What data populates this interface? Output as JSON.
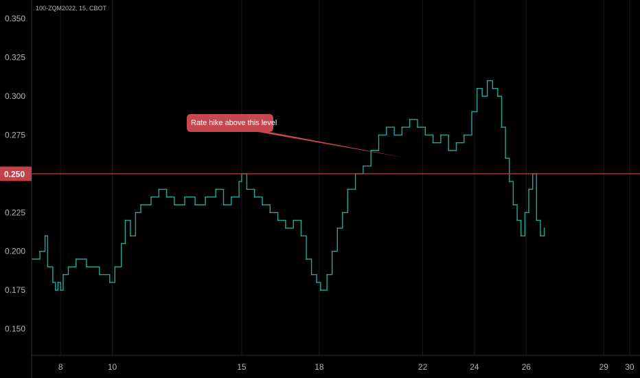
{
  "chart_data": {
    "type": "line",
    "title": "100-ZQM2022, 15, CBOT",
    "xlabel": "",
    "ylabel": "",
    "x_ticks": [
      {
        "label": "8",
        "x": 8
      },
      {
        "label": "10",
        "x": 10
      },
      {
        "label": "15",
        "x": 15
      },
      {
        "label": "18",
        "x": 18
      },
      {
        "label": "22",
        "x": 22
      },
      {
        "label": "24",
        "x": 24
      },
      {
        "label": "26",
        "x": 26
      },
      {
        "label": "29",
        "x": 29
      },
      {
        "label": "30",
        "x": 30
      }
    ],
    "y_ticks": [
      "0.150",
      "0.175",
      "0.200",
      "0.225",
      "0.250",
      "0.275",
      "0.300",
      "0.325",
      "0.350"
    ],
    "ylim": [
      0.133,
      0.362
    ],
    "xlim": [
      6.88,
      30.4
    ],
    "grid": "vertical",
    "series": [
      {
        "color": "#26a69a",
        "values": [
          [
            6.9,
            0.195
          ],
          [
            7.2,
            0.2
          ],
          [
            7.4,
            0.21
          ],
          [
            7.5,
            0.19
          ],
          [
            7.7,
            0.18
          ],
          [
            7.8,
            0.175
          ],
          [
            7.9,
            0.18
          ],
          [
            8.0,
            0.175
          ],
          [
            8.1,
            0.185
          ],
          [
            8.3,
            0.19
          ],
          [
            8.6,
            0.195
          ],
          [
            9.0,
            0.19
          ],
          [
            9.5,
            0.185
          ],
          [
            9.9,
            0.18
          ],
          [
            10.1,
            0.19
          ],
          [
            10.35,
            0.205
          ],
          [
            10.5,
            0.22
          ],
          [
            10.7,
            0.21
          ],
          [
            10.9,
            0.225
          ],
          [
            11.1,
            0.23
          ],
          [
            11.5,
            0.235
          ],
          [
            11.8,
            0.24
          ],
          [
            12.1,
            0.235
          ],
          [
            12.4,
            0.23
          ],
          [
            12.8,
            0.235
          ],
          [
            13.2,
            0.23
          ],
          [
            13.6,
            0.235
          ],
          [
            14.0,
            0.24
          ],
          [
            14.3,
            0.23
          ],
          [
            14.6,
            0.235
          ],
          [
            14.9,
            0.245
          ],
          [
            15.0,
            0.25
          ],
          [
            15.2,
            0.24
          ],
          [
            15.5,
            0.235
          ],
          [
            15.8,
            0.23
          ],
          [
            16.1,
            0.225
          ],
          [
            16.4,
            0.22
          ],
          [
            16.7,
            0.215
          ],
          [
            17.0,
            0.22
          ],
          [
            17.3,
            0.21
          ],
          [
            17.5,
            0.195
          ],
          [
            17.7,
            0.185
          ],
          [
            17.9,
            0.18
          ],
          [
            18.05,
            0.175
          ],
          [
            18.3,
            0.185
          ],
          [
            18.5,
            0.2
          ],
          [
            18.7,
            0.215
          ],
          [
            18.9,
            0.225
          ],
          [
            19.1,
            0.24
          ],
          [
            19.4,
            0.25
          ],
          [
            19.7,
            0.255
          ],
          [
            20.0,
            0.265
          ],
          [
            20.3,
            0.275
          ],
          [
            20.6,
            0.28
          ],
          [
            20.9,
            0.275
          ],
          [
            21.2,
            0.28
          ],
          [
            21.5,
            0.285
          ],
          [
            21.8,
            0.28
          ],
          [
            22.1,
            0.275
          ],
          [
            22.4,
            0.27
          ],
          [
            22.7,
            0.275
          ],
          [
            23.0,
            0.265
          ],
          [
            23.3,
            0.27
          ],
          [
            23.6,
            0.275
          ],
          [
            23.9,
            0.29
          ],
          [
            24.1,
            0.305
          ],
          [
            24.3,
            0.3
          ],
          [
            24.5,
            0.31
          ],
          [
            24.7,
            0.305
          ],
          [
            24.9,
            0.3
          ],
          [
            25.05,
            0.28
          ],
          [
            25.2,
            0.26
          ],
          [
            25.35,
            0.245
          ],
          [
            25.5,
            0.23
          ],
          [
            25.65,
            0.22
          ],
          [
            25.8,
            0.21
          ],
          [
            25.95,
            0.225
          ],
          [
            26.1,
            0.24
          ],
          [
            26.25,
            0.25
          ],
          [
            26.4,
            0.22
          ],
          [
            26.55,
            0.21
          ],
          [
            26.7,
            0.215
          ]
        ]
      }
    ],
    "horizontal_line": {
      "value": 0.25,
      "label": "0.250",
      "color": "#c2404a"
    },
    "annotation": {
      "text": "Rate hike above this level",
      "color": "#c8484f",
      "points_to": [
        21.4,
        0.253
      ]
    }
  }
}
